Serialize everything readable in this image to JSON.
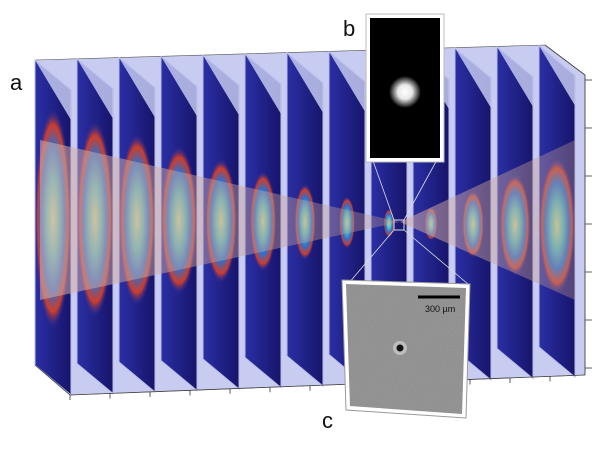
{
  "figure": {
    "panel_labels": {
      "a": "a",
      "b": "b",
      "c": "c"
    },
    "scale_bar_label": "300 µm",
    "colors": {
      "slice_face": "#b8bde8",
      "slice_bg": "#1e1878",
      "beam": "#c9a8a0",
      "inset_b_bg": "#000000",
      "inset_c_bg": "#8f8f8f"
    }
  }
}
